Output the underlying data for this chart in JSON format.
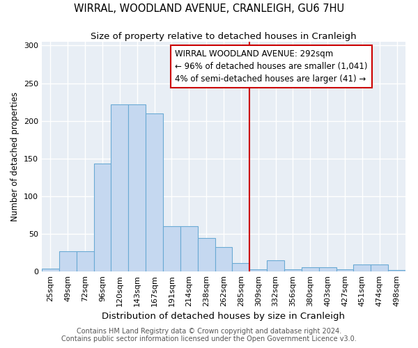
{
  "title": "WIRRAL, WOODLAND AVENUE, CRANLEIGH, GU6 7HU",
  "subtitle": "Size of property relative to detached houses in Cranleigh",
  "xlabel": "Distribution of detached houses by size in Cranleigh",
  "ylabel": "Number of detached properties",
  "categories": [
    "25sqm",
    "49sqm",
    "72sqm",
    "96sqm",
    "120sqm",
    "143sqm",
    "167sqm",
    "191sqm",
    "214sqm",
    "238sqm",
    "262sqm",
    "285sqm",
    "309sqm",
    "332sqm",
    "356sqm",
    "380sqm",
    "403sqm",
    "427sqm",
    "451sqm",
    "474sqm",
    "498sqm"
  ],
  "values": [
    4,
    27,
    27,
    143,
    222,
    222,
    210,
    60,
    60,
    44,
    32,
    11,
    3,
    15,
    3,
    6,
    6,
    3,
    9,
    9,
    2
  ],
  "bar_color": "#c5d8f0",
  "bar_edge_color": "#6aaad4",
  "marker_label": "WIRRAL WOODLAND AVENUE: 292sqm",
  "annotation_line1": "← 96% of detached houses are smaller (1,041)",
  "annotation_line2": "4% of semi-detached houses are larger (41) →",
  "annotation_box_edge": "#cc0000",
  "marker_line_color": "#cc0000",
  "ylim": [
    0,
    305
  ],
  "yticks": [
    0,
    50,
    100,
    150,
    200,
    250,
    300
  ],
  "fig_bg": "#ffffff",
  "plot_bg": "#e8eef5",
  "grid_color": "#ffffff",
  "title_fontsize": 10.5,
  "subtitle_fontsize": 9.5,
  "xlabel_fontsize": 9.5,
  "ylabel_fontsize": 8.5,
  "tick_fontsize": 8,
  "annotation_fontsize": 8.5,
  "footer_fontsize": 7
}
